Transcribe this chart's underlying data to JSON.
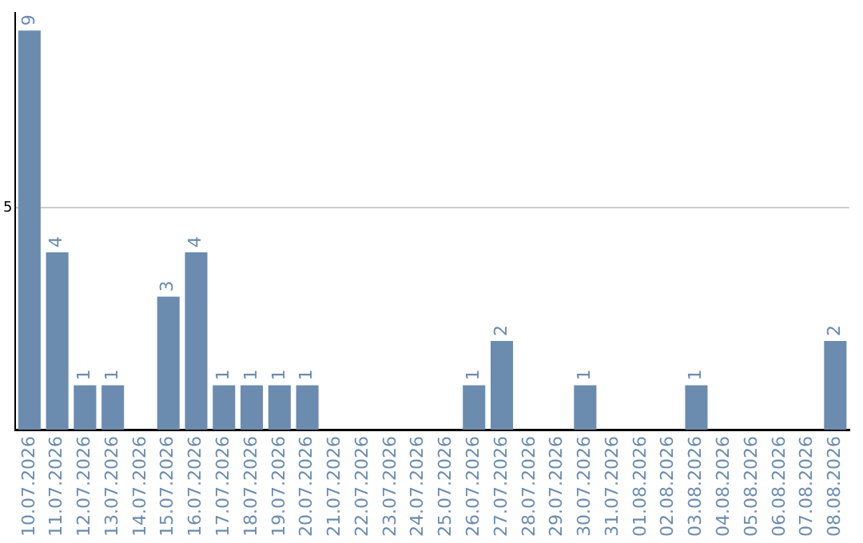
{
  "chart_data": {
    "type": "bar",
    "categories": [
      "10.07.2026",
      "11.07.2026",
      "12.07.2026",
      "13.07.2026",
      "14.07.2026",
      "15.07.2026",
      "16.07.2026",
      "17.07.2026",
      "18.07.2026",
      "19.07.2026",
      "20.07.2026",
      "21.07.2026",
      "22.07.2026",
      "23.07.2026",
      "24.07.2026",
      "25.07.2026",
      "26.07.2026",
      "27.07.2026",
      "28.07.2026",
      "29.07.2026",
      "30.07.2026",
      "31.07.2026",
      "01.08.2026",
      "02.08.2026",
      "03.08.2026",
      "04.08.2026",
      "05.08.2026",
      "06.08.2026",
      "07.08.2026",
      "08.08.2026"
    ],
    "values": [
      9,
      4,
      1,
      1,
      0,
      3,
      4,
      1,
      1,
      1,
      1,
      0,
      0,
      0,
      0,
      0,
      1,
      2,
      0,
      0,
      1,
      0,
      0,
      0,
      1,
      0,
      0,
      0,
      0,
      2
    ],
    "value_labels": [
      "9",
      "4",
      "1",
      "1",
      null,
      "3",
      "4",
      "1",
      "1",
      "1",
      "1",
      null,
      null,
      null,
      null,
      null,
      "1",
      "2",
      null,
      null,
      "1",
      null,
      null,
      null,
      "1",
      null,
      null,
      null,
      null,
      "2"
    ],
    "color": "#6b8caf",
    "ylim": [
      0,
      9.4
    ],
    "yticks": [
      5
    ],
    "grid": "y",
    "legend": false
  }
}
